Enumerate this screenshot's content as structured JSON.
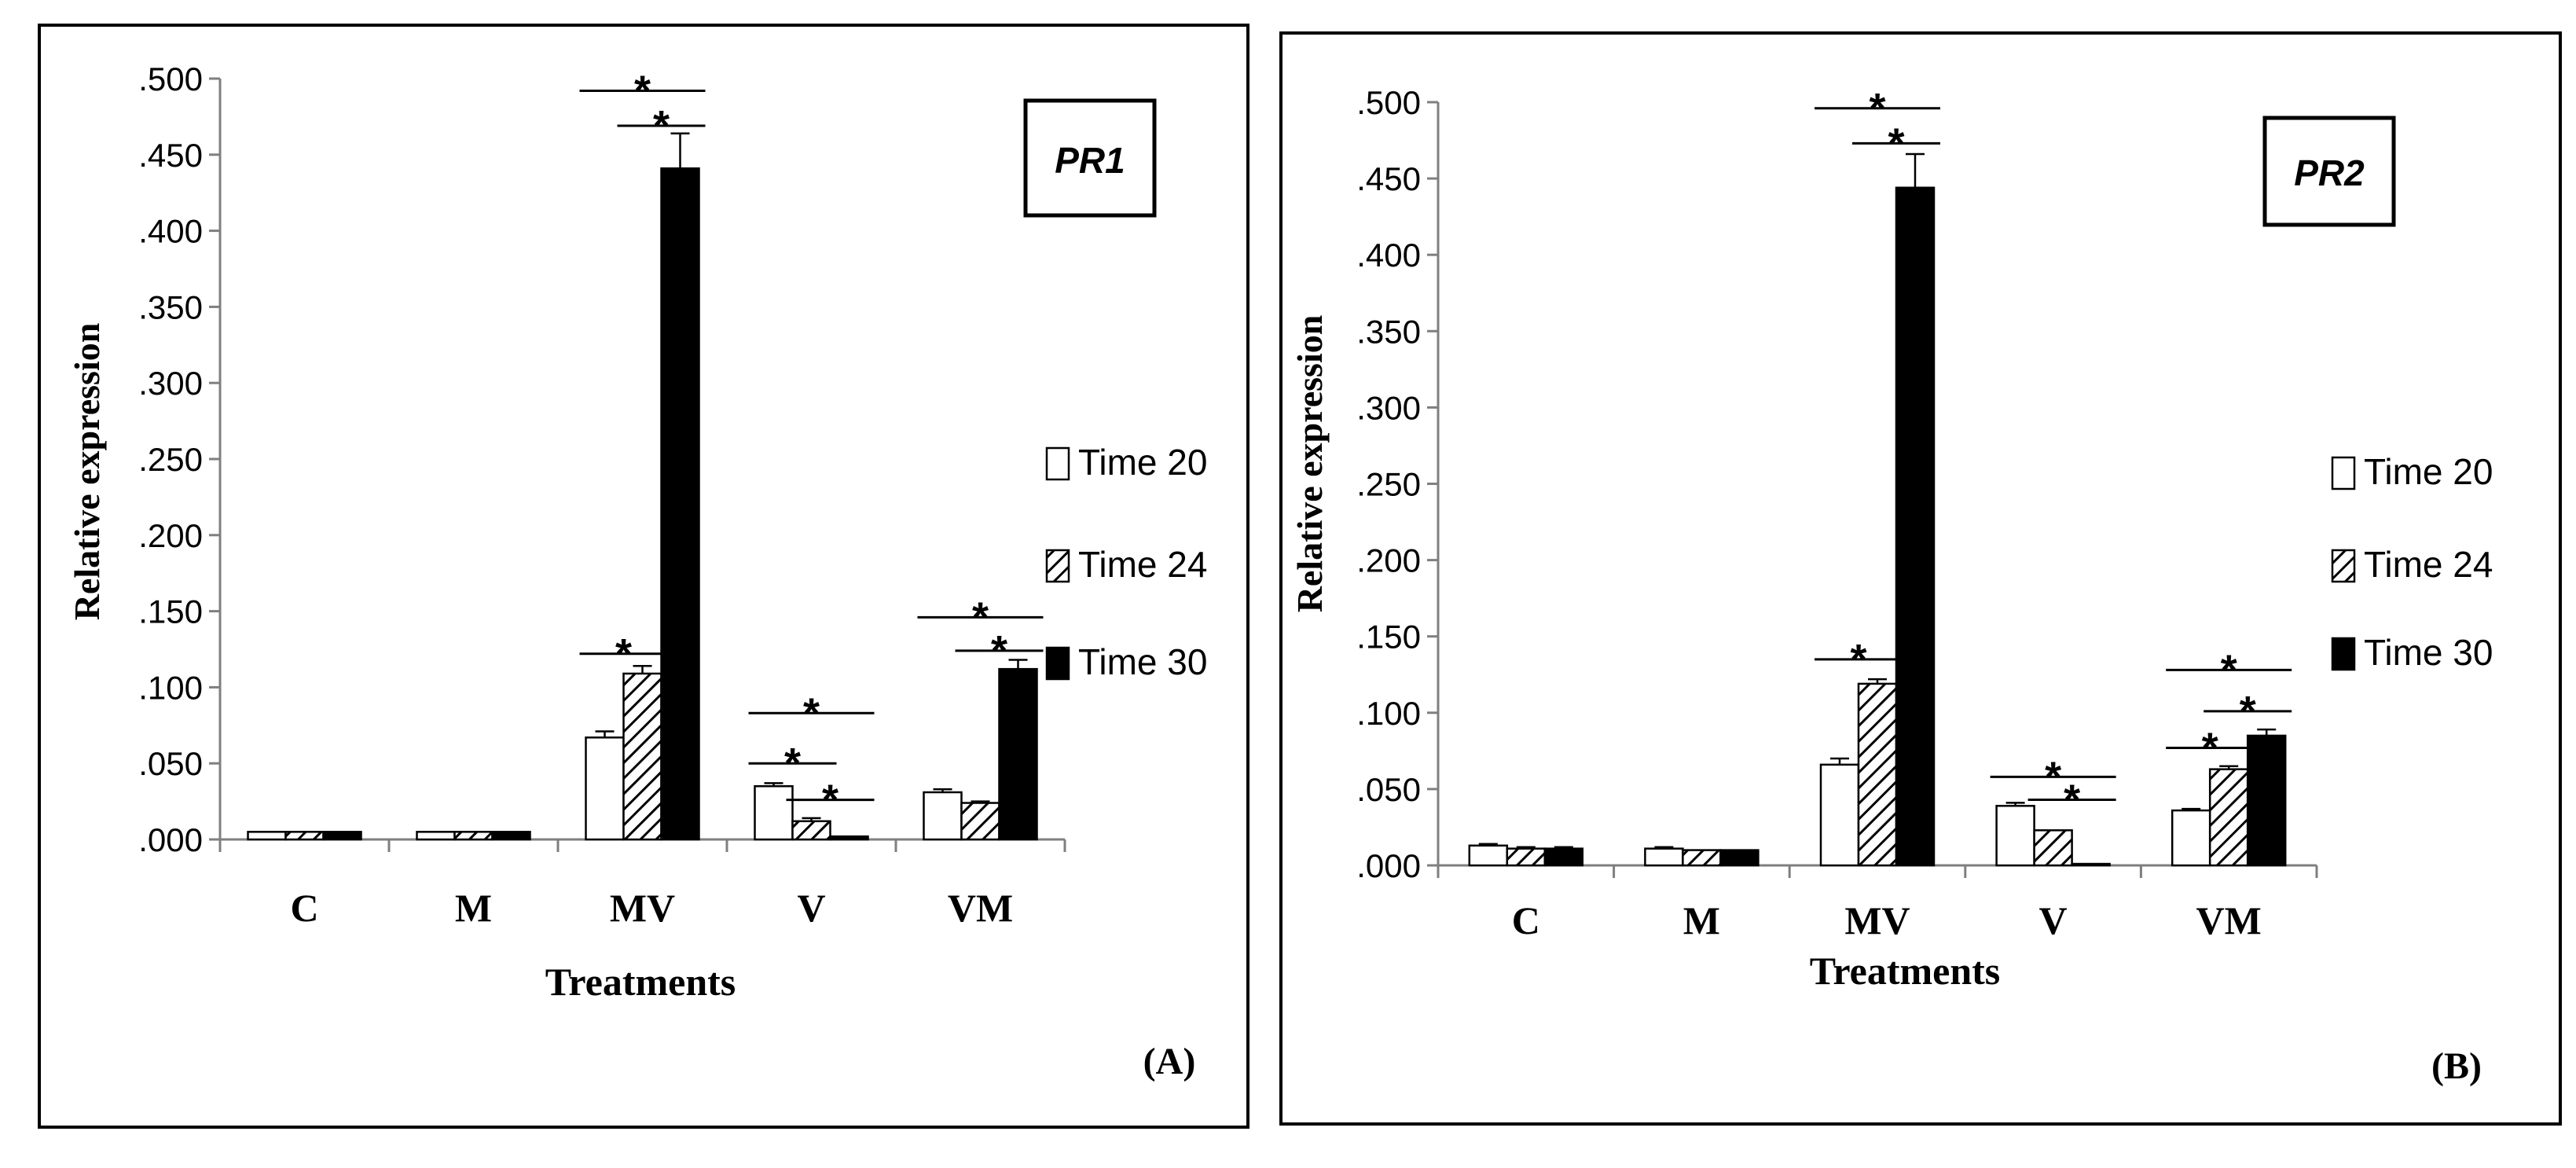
{
  "chart_data": [
    {
      "type": "bar",
      "panel_label": "(A)",
      "gene_label": "PR1",
      "xlabel": "Treatments",
      "ylabel": "Relative expression",
      "ylim": [
        0,
        0.5
      ],
      "ytick_values": [
        0,
        0.05,
        0.1,
        0.15,
        0.2,
        0.25,
        0.3,
        0.35,
        0.4,
        0.45,
        0.5
      ],
      "ytick_labels": [
        ".000",
        ".050",
        ".100",
        ".150",
        ".200",
        ".250",
        ".300",
        ".350",
        ".400",
        ".450",
        ".500"
      ],
      "categories": [
        "C",
        "M",
        "MV",
        "V",
        "VM"
      ],
      "series": [
        {
          "name": "Time 20",
          "values": [
            0.005,
            0.005,
            0.067,
            0.035,
            0.031
          ],
          "errors": [
            0,
            0,
            0.004,
            0.002,
            0.002
          ]
        },
        {
          "name": "Time 24",
          "values": [
            0.005,
            0.005,
            0.109,
            0.012,
            0.024
          ],
          "errors": [
            0,
            0,
            0.005,
            0.002,
            0.001
          ]
        },
        {
          "name": "Time 30",
          "values": [
            0.005,
            0.005,
            0.441,
            0.002,
            0.112
          ],
          "errors": [
            0,
            0,
            0.023,
            0,
            0.006
          ]
        }
      ],
      "legend_position": "right",
      "annotations": [
        {
          "text": "*",
          "category": "MV",
          "from_series": 0,
          "to_series": 2,
          "value": 0.492
        },
        {
          "text": "*",
          "category": "MV",
          "from_series": 1,
          "to_series": 2,
          "value": 0.469
        },
        {
          "text": "*",
          "category": "MV",
          "from_series": 0,
          "to_series": 1,
          "value": 0.122
        },
        {
          "text": "*",
          "category": "V",
          "from_series": 0,
          "to_series": 2,
          "value": 0.083
        },
        {
          "text": "*",
          "category": "V",
          "from_series": 0,
          "to_series": 1,
          "value": 0.05
        },
        {
          "text": "*",
          "category": "V",
          "from_series": 1,
          "to_series": 2,
          "value": 0.026
        },
        {
          "text": "*",
          "category": "VM",
          "from_series": 0,
          "to_series": 2,
          "value": 0.146
        },
        {
          "text": "*",
          "category": "VM",
          "from_series": 1,
          "to_series": 2,
          "value": 0.124
        }
      ]
    },
    {
      "type": "bar",
      "panel_label": "(B)",
      "gene_label": "PR2",
      "xlabel": "Treatments",
      "ylabel": "Relative expression",
      "ylim": [
        0,
        0.5
      ],
      "ytick_values": [
        0,
        0.05,
        0.1,
        0.15,
        0.2,
        0.25,
        0.3,
        0.35,
        0.4,
        0.45,
        0.5
      ],
      "ytick_labels": [
        ".000",
        ".050",
        ".100",
        ".150",
        ".200",
        ".250",
        ".300",
        ".350",
        ".400",
        ".450",
        ".500"
      ],
      "categories": [
        "C",
        "M",
        "MV",
        "V",
        "VM"
      ],
      "series": [
        {
          "name": "Time 20",
          "values": [
            0.013,
            0.011,
            0.066,
            0.039,
            0.036
          ],
          "errors": [
            0.001,
            0.001,
            0.004,
            0.002,
            0.001
          ]
        },
        {
          "name": "Time 24",
          "values": [
            0.011,
            0.01,
            0.119,
            0.023,
            0.063
          ],
          "errors": [
            0.001,
            0,
            0.003,
            0,
            0.002
          ]
        },
        {
          "name": "Time 30",
          "values": [
            0.011,
            0.01,
            0.444,
            0.001,
            0.085
          ],
          "errors": [
            0.001,
            0,
            0.022,
            0,
            0.004
          ]
        }
      ],
      "legend_position": "right",
      "annotations": [
        {
          "text": "*",
          "category": "MV",
          "from_series": 0,
          "to_series": 2,
          "value": 0.496
        },
        {
          "text": "*",
          "category": "MV",
          "from_series": 1,
          "to_series": 2,
          "value": 0.473
        },
        {
          "text": "*",
          "category": "MV",
          "from_series": 0,
          "to_series": 1,
          "value": 0.135
        },
        {
          "text": "*",
          "category": "V",
          "from_series": 0,
          "to_series": 2,
          "value": 0.058
        },
        {
          "text": "*",
          "category": "V",
          "from_series": 1,
          "to_series": 2,
          "value": 0.043
        },
        {
          "text": "*",
          "category": "VM",
          "from_series": 0,
          "to_series": 2,
          "value": 0.128
        },
        {
          "text": "*",
          "category": "VM",
          "from_series": 0,
          "to_series": 1,
          "value": 0.077
        },
        {
          "text": "*",
          "category": "VM",
          "from_series": 1,
          "to_series": 2,
          "value": 0.101
        }
      ]
    }
  ]
}
